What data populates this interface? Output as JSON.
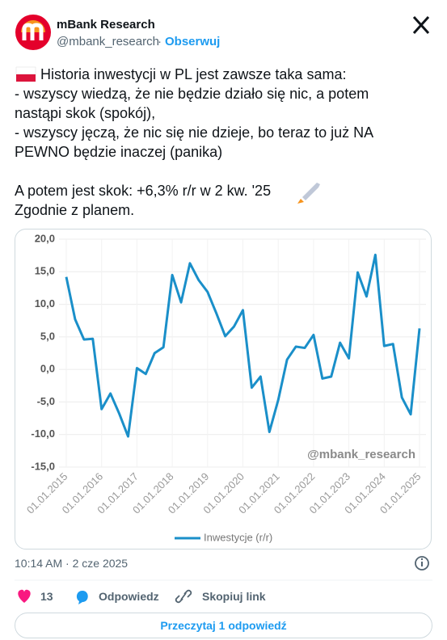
{
  "header": {
    "name": "mBank Research",
    "handle": "@mbank_research",
    "separator": "·",
    "follow": "Obserwuj"
  },
  "text": {
    "lines": [
      "Historia inwestycji w PL jest zawsze taka sama:",
      "- wszyscy wiedzą, że nie będzie działo się nic, a potem",
      "nastąpi skok (spokój),",
      "- wszyscy jęczą, że nic się nie dzieje, bo teraz to już NA",
      "PEWNO będzie inaczej (panika)",
      "A potem jest skok: +6,3% r/r w 2 kw. '25",
      "Zgodnie z planem."
    ]
  },
  "chart_data": {
    "type": "line",
    "categories": [
      "01.01.2015",
      null,
      null,
      null,
      "01.01.2016",
      null,
      null,
      null,
      "01.01.2017",
      null,
      null,
      null,
      "01.01.2018",
      null,
      null,
      null,
      "01.01.2019",
      null,
      null,
      null,
      "01.01.2020",
      null,
      null,
      null,
      "01.01.2021",
      null,
      null,
      null,
      "01.01.2022",
      null,
      null,
      null,
      "01.01.2023",
      null,
      null,
      null,
      "01.01.2024",
      null,
      null,
      null,
      "01.01.2025"
    ],
    "series": [
      {
        "name": "Inwestycje (r/r)",
        "color": "#1a8fc9",
        "values": [
          14.2,
          7.7,
          4.6,
          4.7,
          -6.1,
          -3.7,
          -6.8,
          -10.3,
          0.2,
          -0.7,
          2.5,
          3.4,
          14.5,
          10.3,
          16.3,
          13.7,
          11.9,
          8.6,
          5.1,
          6.6,
          9.1,
          -2.8,
          -1.1,
          -9.6,
          -4.7,
          1.5,
          3.5,
          3.3,
          5.3,
          -1.4,
          -1.1,
          4.1,
          1.7,
          14.9,
          11.2,
          17.6,
          3.6,
          3.9,
          -4.3,
          -6.9,
          6.3
        ]
      }
    ],
    "ylim": [
      -15,
      20
    ],
    "yticks": [
      {
        "value": -15,
        "label": "-15,0"
      },
      {
        "value": -10,
        "label": "-10,0"
      },
      {
        "value": -5,
        "label": "-5,0"
      },
      {
        "value": 0,
        "label": "0,0"
      },
      {
        "value": 5,
        "label": "5,0"
      },
      {
        "value": 10,
        "label": "10,0"
      },
      {
        "value": 15,
        "label": "15,0"
      },
      {
        "value": 20,
        "label": "20,0"
      }
    ],
    "grid": true,
    "legend": "bottom",
    "annotations": [
      "@mbank_research"
    ]
  },
  "footer": {
    "timestamp": "10:14 AM · 2 cze 2025",
    "likes": 13,
    "reply": "Odpowiedz",
    "copy": "Skopiuj link",
    "read_replies": "Przeczytaj 1 odpowiedź"
  }
}
